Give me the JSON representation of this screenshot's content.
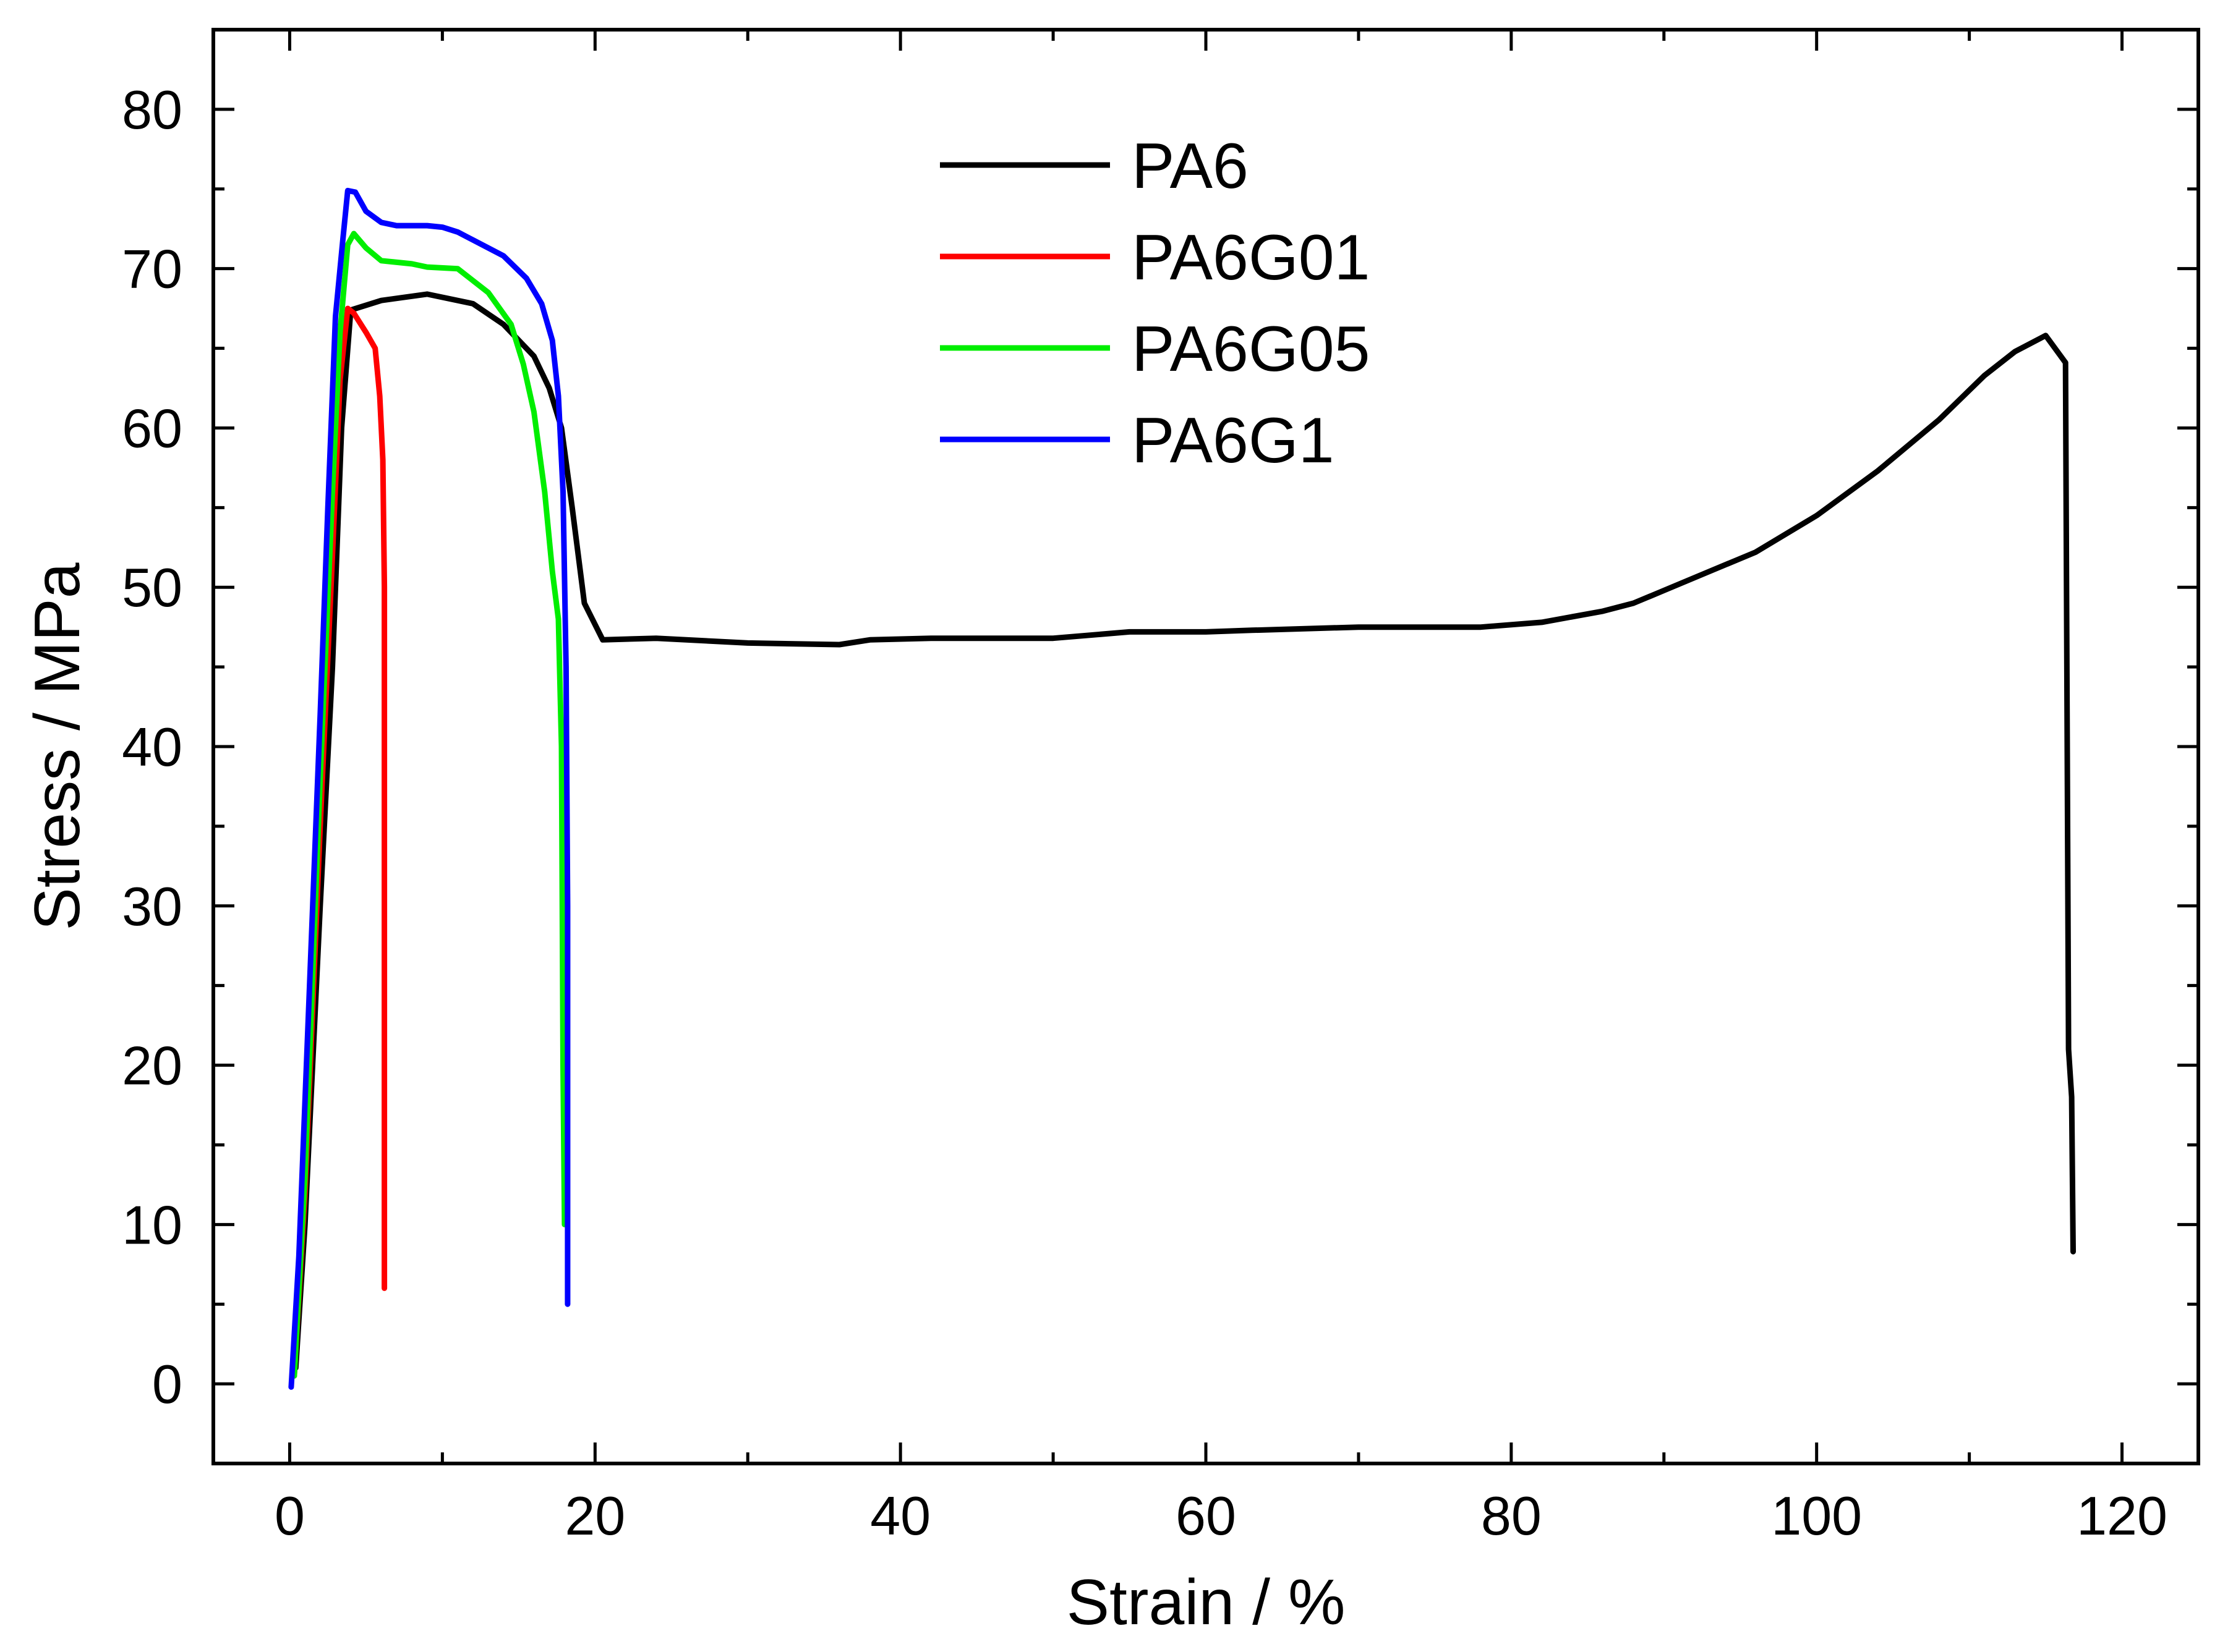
{
  "chart_data": {
    "type": "line",
    "title": "",
    "xlabel": "Strain / %",
    "ylabel": "Stress / MPa",
    "xlim": [
      -5,
      125
    ],
    "ylim": [
      -5,
      85
    ],
    "xticks": [
      0,
      20,
      40,
      60,
      80,
      100,
      120
    ],
    "yticks": [
      0,
      10,
      20,
      30,
      40,
      50,
      60,
      70,
      80
    ],
    "grid": false,
    "legend_position": "top-center",
    "series": [
      {
        "name": "PA6",
        "color": "#000000",
        "points": [
          [
            0.4,
            1
          ],
          [
            1,
            10
          ],
          [
            2,
            30
          ],
          [
            2.8,
            45
          ],
          [
            3.4,
            60
          ],
          [
            4,
            67.4
          ],
          [
            6,
            68
          ],
          [
            9,
            68.4
          ],
          [
            12,
            67.8
          ],
          [
            14,
            66.5
          ],
          [
            16,
            64.5
          ],
          [
            17,
            62.5
          ],
          [
            17.8,
            60
          ],
          [
            18.5,
            55
          ],
          [
            19.3,
            49
          ],
          [
            20.5,
            46.7
          ],
          [
            24,
            46.8
          ],
          [
            30,
            46.5
          ],
          [
            36,
            46.4
          ],
          [
            38,
            46.7
          ],
          [
            42,
            46.8
          ],
          [
            50,
            46.8
          ],
          [
            55,
            47.2
          ],
          [
            60,
            47.2
          ],
          [
            63,
            47.3
          ],
          [
            70,
            47.5
          ],
          [
            78,
            47.5
          ],
          [
            82,
            47.8
          ],
          [
            86,
            48.5
          ],
          [
            88,
            49
          ],
          [
            90,
            49.8
          ],
          [
            93,
            51
          ],
          [
            96,
            52.2
          ],
          [
            100,
            54.5
          ],
          [
            104,
            57.3
          ],
          [
            108,
            60.5
          ],
          [
            111,
            63.3
          ],
          [
            113,
            64.8
          ],
          [
            115,
            65.8
          ],
          [
            116.3,
            64.1
          ],
          [
            116.5,
            21
          ],
          [
            116.7,
            18
          ],
          [
            116.8,
            8.3
          ]
        ]
      },
      {
        "name": "PA6G01",
        "color": "#ff0000",
        "points": [
          [
            0.3,
            0.5
          ],
          [
            1,
            12
          ],
          [
            2,
            35
          ],
          [
            2.8,
            52
          ],
          [
            3.3,
            63
          ],
          [
            3.8,
            67.5
          ],
          [
            4.2,
            67.2
          ],
          [
            5,
            66
          ],
          [
            5.6,
            65
          ],
          [
            5.9,
            62
          ],
          [
            6.1,
            58
          ],
          [
            6.2,
            50
          ],
          [
            6.2,
            25
          ],
          [
            6.2,
            12
          ],
          [
            6.2,
            6
          ]
        ]
      },
      {
        "name": "PA6G05",
        "color": "#00ee00",
        "points": [
          [
            0.3,
            0.5
          ],
          [
            1,
            13
          ],
          [
            2,
            38
          ],
          [
            2.8,
            56
          ],
          [
            3.3,
            66
          ],
          [
            3.8,
            71.5
          ],
          [
            4.2,
            72.2
          ],
          [
            5,
            71.3
          ],
          [
            6,
            70.5
          ],
          [
            8,
            70.3
          ],
          [
            9,
            70.1
          ],
          [
            11,
            70
          ],
          [
            13,
            68.5
          ],
          [
            14.5,
            66.5
          ],
          [
            15.3,
            64
          ],
          [
            16,
            61
          ],
          [
            16.7,
            56
          ],
          [
            17.2,
            51
          ],
          [
            17.6,
            48
          ],
          [
            17.8,
            40
          ],
          [
            17.9,
            20
          ],
          [
            18,
            10
          ]
        ]
      },
      {
        "name": "PA6G1",
        "color": "#0000ff",
        "points": [
          [
            0.1,
            -0.2
          ],
          [
            0.6,
            8
          ],
          [
            1.3,
            25
          ],
          [
            2,
            42
          ],
          [
            2.5,
            55
          ],
          [
            3,
            67
          ],
          [
            3.5,
            72
          ],
          [
            3.8,
            74.9
          ],
          [
            4.3,
            74.8
          ],
          [
            5,
            73.6
          ],
          [
            6,
            72.9
          ],
          [
            7,
            72.7
          ],
          [
            9,
            72.7
          ],
          [
            10,
            72.6
          ],
          [
            11,
            72.3
          ],
          [
            12,
            71.8
          ],
          [
            14,
            70.8
          ],
          [
            15.5,
            69.4
          ],
          [
            16.5,
            67.8
          ],
          [
            17.2,
            65.5
          ],
          [
            17.6,
            62
          ],
          [
            17.9,
            56
          ],
          [
            18.1,
            45
          ],
          [
            18.2,
            30
          ],
          [
            18.2,
            15
          ],
          [
            18.2,
            5
          ]
        ]
      }
    ]
  }
}
